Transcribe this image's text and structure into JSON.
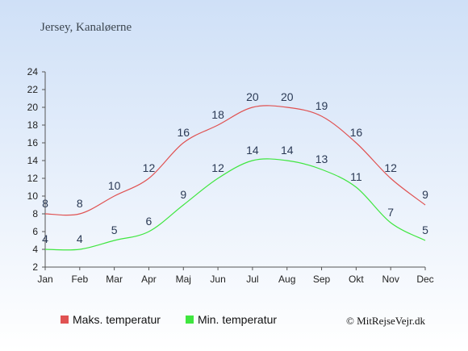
{
  "chart_data": {
    "type": "line",
    "title": "Jersey, Kanaløerne",
    "categories": [
      "Jan",
      "Feb",
      "Mar",
      "Apr",
      "Maj",
      "Jun",
      "Jul",
      "Aug",
      "Sep",
      "Okt",
      "Nov",
      "Dec"
    ],
    "ylim": [
      2,
      24
    ],
    "yticks": [
      2,
      4,
      6,
      8,
      10,
      12,
      14,
      16,
      18,
      20,
      22,
      24
    ],
    "grid": false,
    "legend_position": "bottom",
    "series": [
      {
        "name": "Maks. temperatur",
        "color": "#e05252",
        "values": [
          8,
          8,
          10,
          12,
          16,
          18,
          20,
          20,
          19,
          16,
          12,
          9
        ]
      },
      {
        "name": "Min. temperatur",
        "color": "#3fe63f",
        "values": [
          4,
          4,
          5,
          6,
          9,
          12,
          14,
          14,
          13,
          11,
          7,
          5
        ]
      }
    ],
    "credit": "© MitRejseVejr.dk"
  }
}
